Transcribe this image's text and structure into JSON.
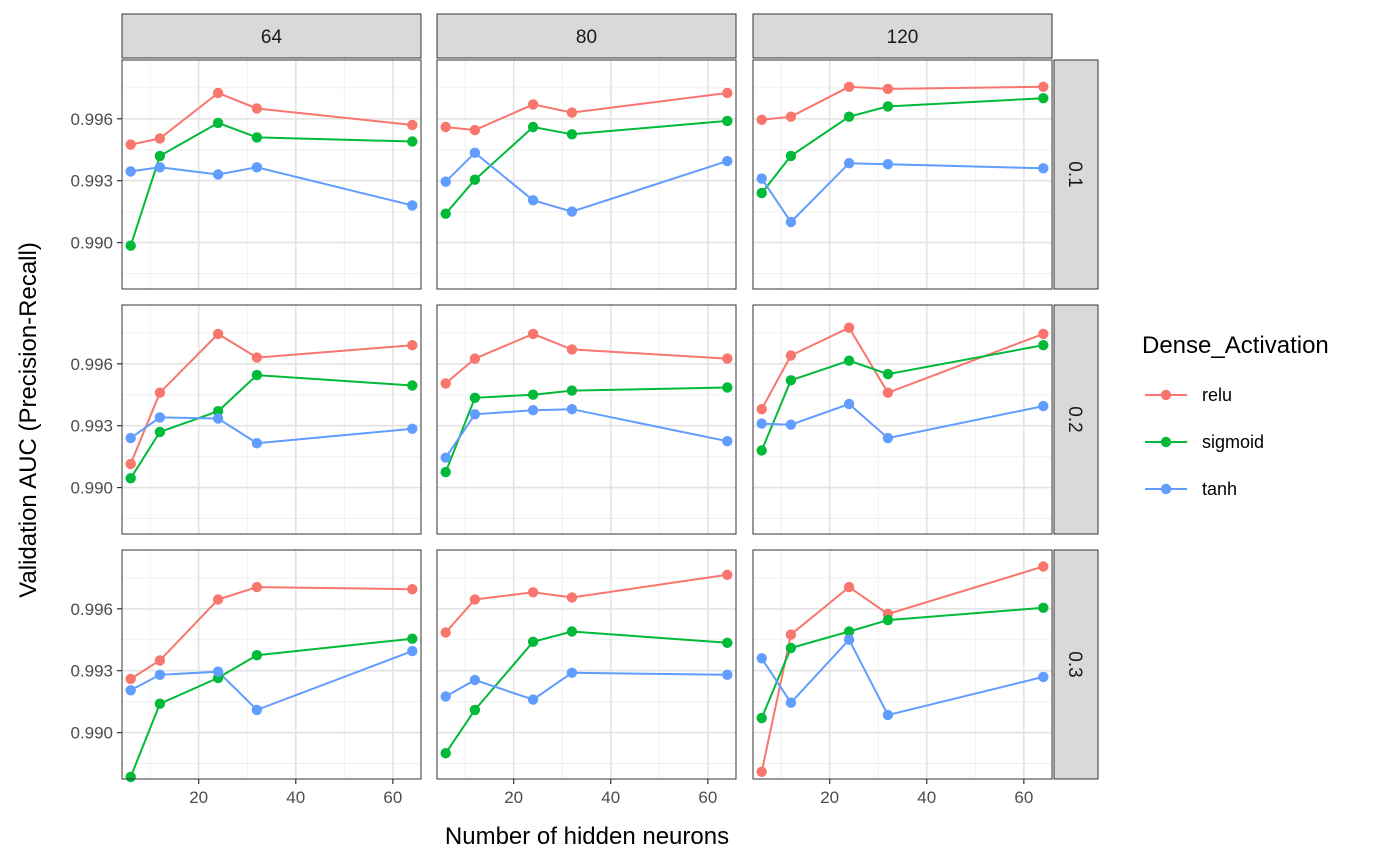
{
  "chart_data": {
    "type": "line",
    "title": "",
    "xlabel": "Number of hidden neurons",
    "ylabel": "Validation AUC (Precision-Recall)",
    "legend_title": "Dense_Activation",
    "legend_position": "right",
    "grid": true,
    "facet_cols": [
      "64",
      "80",
      "120"
    ],
    "facet_rows": [
      "0.1",
      "0.2",
      "0.3"
    ],
    "x_ticks": [
      "20",
      "40",
      "60"
    ],
    "y_ticks": [
      "0.990",
      "0.993",
      "0.996"
    ],
    "xlim": [
      4.2,
      65.8
    ],
    "ylim": [
      0.98775,
      0.99885
    ],
    "x": [
      6,
      12,
      24,
      32,
      64
    ],
    "colors": {
      "relu": "#F8766D",
      "sigmoid": "#00BA38",
      "tanh": "#619CFF"
    },
    "series_names": [
      "relu",
      "sigmoid",
      "tanh"
    ],
    "panels": [
      {
        "row": "0.1",
        "col": "64",
        "series": [
          {
            "name": "relu",
            "values": [
              0.99475,
              0.99505,
              0.99725,
              0.9965,
              0.9957
            ]
          },
          {
            "name": "sigmoid",
            "values": [
              0.98985,
              0.9942,
              0.9958,
              0.9951,
              0.9949
            ]
          },
          {
            "name": "tanh",
            "values": [
              0.99345,
              0.99365,
              0.9933,
              0.99365,
              0.9918
            ]
          }
        ]
      },
      {
        "row": "0.1",
        "col": "80",
        "series": [
          {
            "name": "relu",
            "values": [
              0.9956,
              0.99545,
              0.9967,
              0.9963,
              0.99725
            ]
          },
          {
            "name": "sigmoid",
            "values": [
              0.9914,
              0.99305,
              0.9956,
              0.99525,
              0.9959
            ]
          },
          {
            "name": "tanh",
            "values": [
              0.99295,
              0.99435,
              0.99205,
              0.9915,
              0.99395
            ]
          }
        ]
      },
      {
        "row": "0.1",
        "col": "120",
        "series": [
          {
            "name": "relu",
            "values": [
              0.99595,
              0.9961,
              0.99755,
              0.99745,
              0.99755
            ]
          },
          {
            "name": "sigmoid",
            "values": [
              0.9924,
              0.9942,
              0.9961,
              0.9966,
              0.997
            ]
          },
          {
            "name": "tanh",
            "values": [
              0.9931,
              0.991,
              0.99385,
              0.9938,
              0.9936
            ]
          }
        ]
      },
      {
        "row": "0.2",
        "col": "64",
        "series": [
          {
            "name": "relu",
            "values": [
              0.99115,
              0.9946,
              0.99745,
              0.9963,
              0.9969
            ]
          },
          {
            "name": "sigmoid",
            "values": [
              0.99045,
              0.9927,
              0.9937,
              0.99545,
              0.99495
            ]
          },
          {
            "name": "tanh",
            "values": [
              0.9924,
              0.9934,
              0.99335,
              0.99215,
              0.99285
            ]
          }
        ]
      },
      {
        "row": "0.2",
        "col": "80",
        "series": [
          {
            "name": "relu",
            "values": [
              0.99505,
              0.99625,
              0.99745,
              0.9967,
              0.99625
            ]
          },
          {
            "name": "sigmoid",
            "values": [
              0.99075,
              0.99435,
              0.9945,
              0.9947,
              0.99485
            ]
          },
          {
            "name": "tanh",
            "values": [
              0.99145,
              0.99355,
              0.99375,
              0.9938,
              0.99225
            ]
          }
        ]
      },
      {
        "row": "0.2",
        "col": "120",
        "series": [
          {
            "name": "relu",
            "values": [
              0.9938,
              0.9964,
              0.99775,
              0.9946,
              0.99745
            ]
          },
          {
            "name": "sigmoid",
            "values": [
              0.9918,
              0.9952,
              0.99615,
              0.9955,
              0.9969
            ]
          },
          {
            "name": "tanh",
            "values": [
              0.9931,
              0.99305,
              0.99405,
              0.9924,
              0.99395
            ]
          }
        ]
      },
      {
        "row": "0.3",
        "col": "64",
        "series": [
          {
            "name": "relu",
            "values": [
              0.9926,
              0.9935,
              0.99645,
              0.99705,
              0.99695
            ]
          },
          {
            "name": "sigmoid",
            "values": [
              0.98785,
              0.9914,
              0.99265,
              0.99375,
              0.99455
            ]
          },
          {
            "name": "tanh",
            "values": [
              0.99205,
              0.9928,
              0.99295,
              0.9911,
              0.99395
            ]
          }
        ]
      },
      {
        "row": "0.3",
        "col": "80",
        "series": [
          {
            "name": "relu",
            "values": [
              0.99485,
              0.99645,
              0.9968,
              0.99655,
              0.99765
            ]
          },
          {
            "name": "sigmoid",
            "values": [
              0.989,
              0.9911,
              0.9944,
              0.9949,
              0.99435
            ]
          },
          {
            "name": "tanh",
            "values": [
              0.99175,
              0.99255,
              0.9916,
              0.9929,
              0.9928
            ]
          }
        ]
      },
      {
        "row": "0.3",
        "col": "120",
        "series": [
          {
            "name": "relu",
            "values": [
              0.9881,
              0.99475,
              0.99705,
              0.99575,
              0.99805
            ]
          },
          {
            "name": "sigmoid",
            "values": [
              0.9907,
              0.9941,
              0.9949,
              0.99545,
              0.99605
            ]
          },
          {
            "name": "tanh",
            "values": [
              0.9936,
              0.99145,
              0.9945,
              0.99085,
              0.9927
            ]
          }
        ]
      }
    ]
  }
}
